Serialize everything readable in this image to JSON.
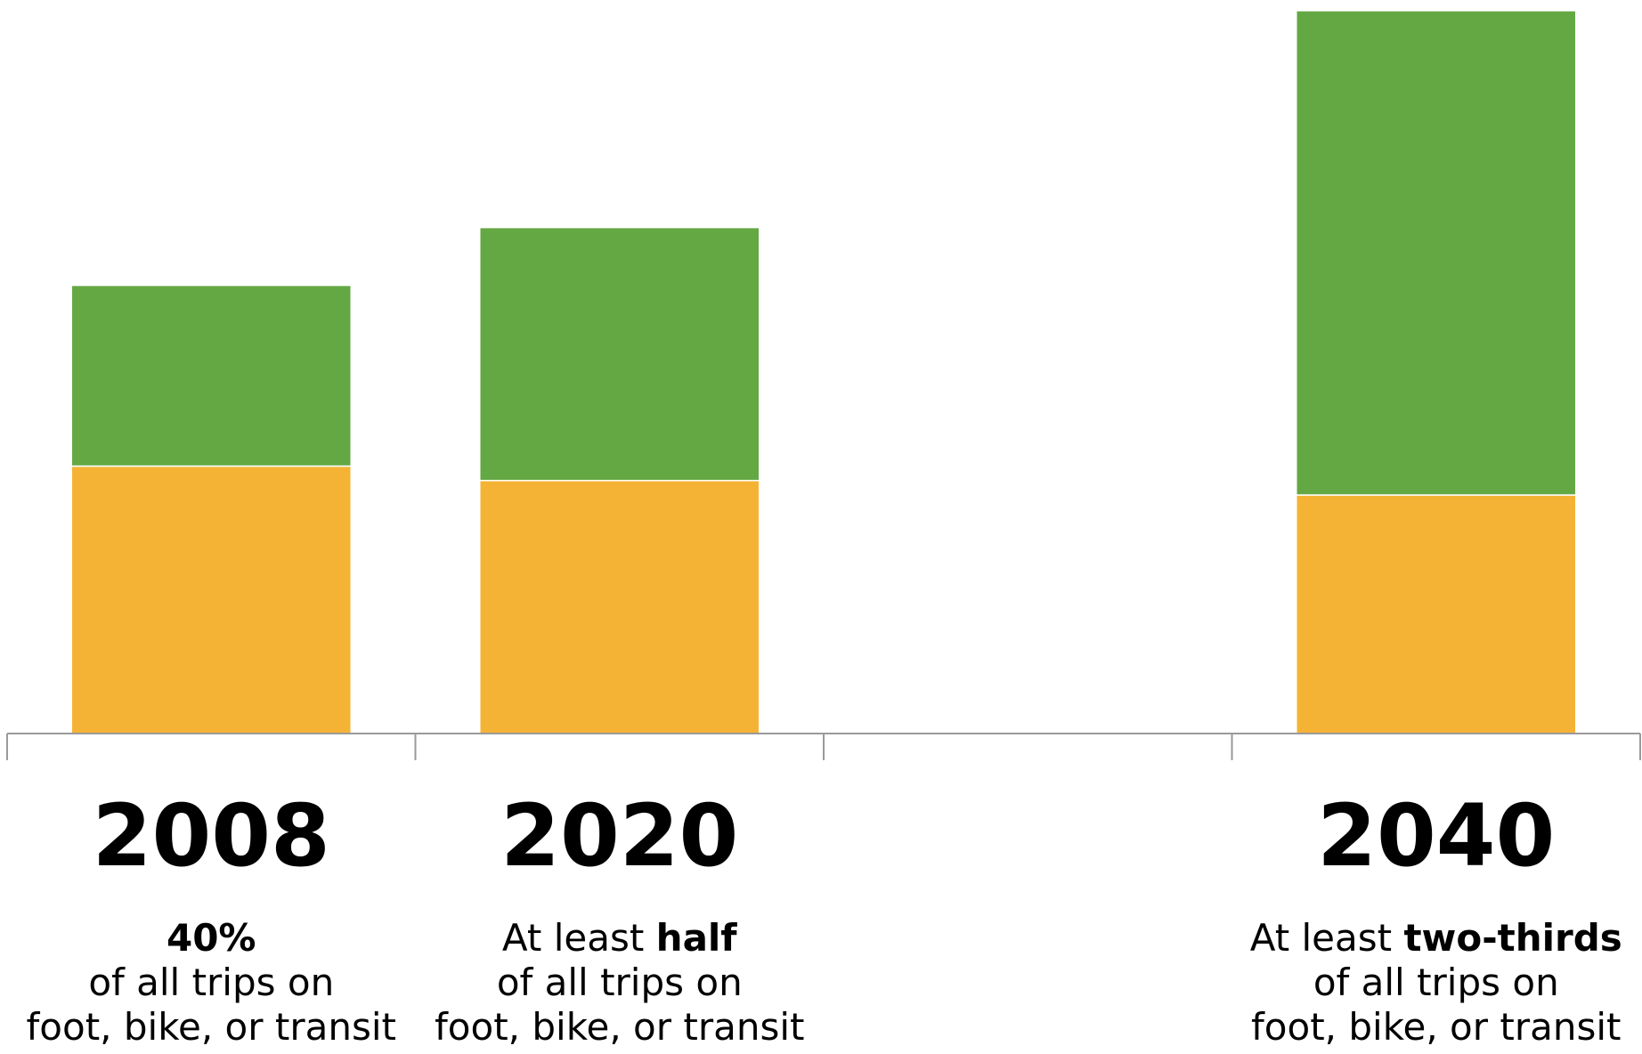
{
  "chart_data": {
    "type": "bar",
    "stacked": true,
    "title": "",
    "xlabel": "",
    "ylabel": "",
    "ylim": [
      0,
      1
    ],
    "grid": false,
    "categories": [
      "2008",
      "2020",
      "",
      "2040"
    ],
    "series": [
      {
        "values": [
          0.37,
          0.35,
          0,
          0.33
        ]
      },
      {
        "values": [
          0.25,
          0.35,
          0,
          0.67
        ]
      }
    ],
    "colors": [
      "#F5B335",
      "#64A844"
    ],
    "axis_color": "#9a9a9a",
    "captions": [
      {
        "lead": "",
        "emphasis": "40%",
        "line2": "of all trips on",
        "line3": "foot, bike, or transit"
      },
      {
        "lead": "At least ",
        "emphasis": "half",
        "line2": "of all trips on",
        "line3": "foot, bike, or transit"
      },
      {
        "lead": "",
        "emphasis": "",
        "line2": "",
        "line3": ""
      },
      {
        "lead": "At least ",
        "emphasis": "two-thirds",
        "line2": "of all trips on",
        "line3": "foot, bike, or transit"
      }
    ]
  }
}
